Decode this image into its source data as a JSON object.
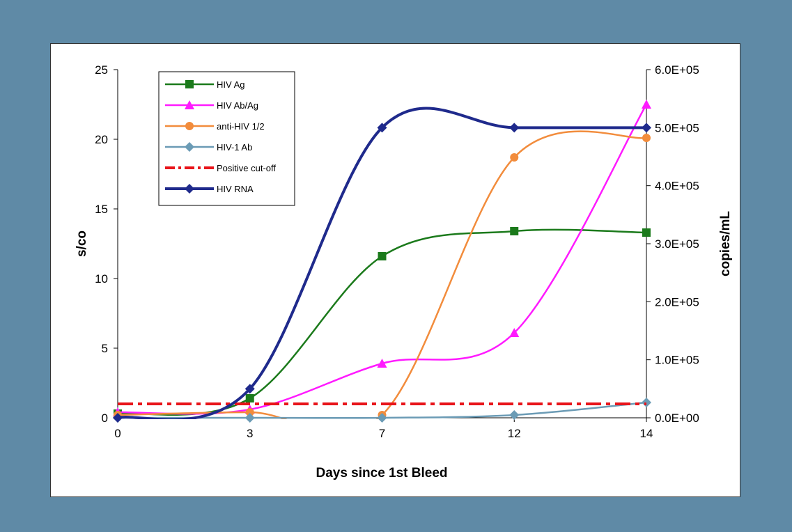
{
  "colors": {
    "background": "#5f8aa6",
    "panel": "#ffffff"
  },
  "chart_data": {
    "type": "line",
    "title": "",
    "xlabel": "Days since 1st Bleed",
    "ylabel": "s/co",
    "y2label": "copies/mL",
    "x_ticks": [
      0,
      3,
      7,
      12,
      14
    ],
    "x_tick_labels": [
      "0",
      "3",
      "7",
      "12",
      "14"
    ],
    "x_categories_positions": "categorical, equally spaced",
    "ylim": [
      0,
      25
    ],
    "y_ticks": [
      0,
      5,
      10,
      15,
      20,
      25
    ],
    "y_tick_labels": [
      "0",
      "5",
      "10",
      "15",
      "20",
      "25"
    ],
    "y2lim": [
      0,
      600000
    ],
    "y2_ticks": [
      0,
      100000,
      200000,
      300000,
      400000,
      500000,
      600000
    ],
    "y2_tick_labels": [
      "0.0E+00",
      "1.0E+05",
      "2.0E+05",
      "3.0E+05",
      "4.0E+05",
      "5.0E+05",
      "6.0E+05"
    ],
    "grid": false,
    "smoothed": true,
    "legend_position": "top-left",
    "series": [
      {
        "name": "HIV Ag",
        "axis": "left",
        "values": [
          0.3,
          1.4,
          11.6,
          13.4,
          13.3
        ],
        "color": "#1b7a1b",
        "marker": "square",
        "dash": "solid",
        "width": 2.5
      },
      {
        "name": "HIV Ab/Ag",
        "axis": "left",
        "values": [
          0.4,
          0.6,
          3.9,
          6.1,
          22.5
        ],
        "color": "#ff1aff",
        "marker": "triangle",
        "dash": "solid",
        "width": 2.5
      },
      {
        "name": "anti-HIV 1/2",
        "axis": "left",
        "values": [
          0.2,
          0.4,
          0.2,
          18.7,
          20.1
        ],
        "color": "#f28c3c",
        "marker": "circle",
        "dash": "solid",
        "width": 2.5
      },
      {
        "name": "HIV-1 Ab",
        "axis": "left",
        "values": [
          0.0,
          0.0,
          0.0,
          0.2,
          1.1
        ],
        "color": "#6b9bb5",
        "marker": "diamond",
        "dash": "solid",
        "width": 2.5
      },
      {
        "name": "Positive cut-off",
        "axis": "left",
        "values": [
          1.0,
          1.0,
          1.0,
          1.0,
          1.0
        ],
        "color": "#e8141a",
        "marker": "none",
        "dash": "dashdot",
        "width": 4
      },
      {
        "name": "HIV RNA",
        "axis": "right",
        "values": [
          0,
          50000,
          500000,
          500000,
          500000
        ],
        "color": "#1f2a8c",
        "marker": "diamond",
        "dash": "solid",
        "width": 4
      }
    ]
  }
}
